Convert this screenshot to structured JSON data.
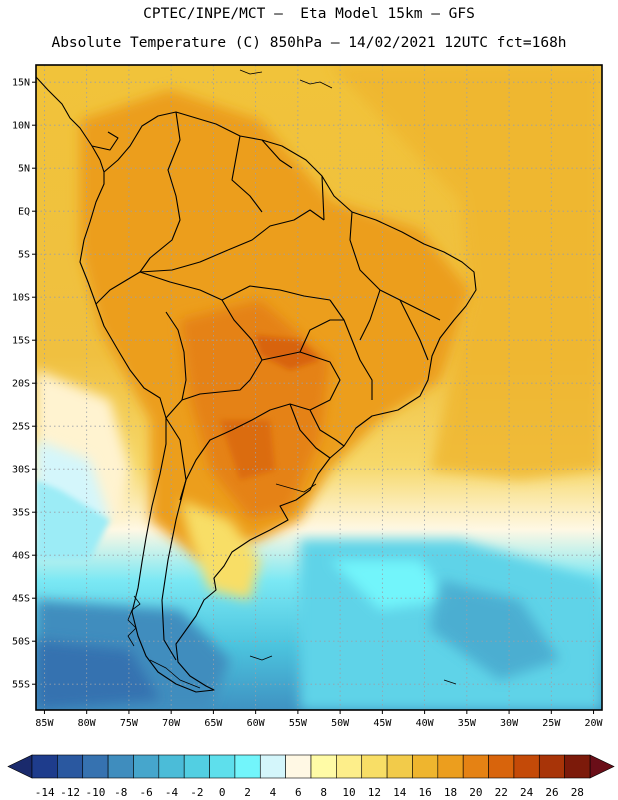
{
  "header": {
    "line1": "CPTEC/INPE/MCT –  Eta Model 15km – GFS",
    "line2": "Absolute Temperature (C) 850hPa – 14/02/2021 12UTC fct=168h"
  },
  "map": {
    "lon_range": [
      -86,
      -19
    ],
    "lat_range": [
      -58,
      17
    ],
    "lat_ticks": [
      "15N",
      "10N",
      "5N",
      "EQ",
      "5S",
      "10S",
      "15S",
      "20S",
      "25S",
      "30S",
      "35S",
      "40S",
      "45S",
      "50S",
      "55S"
    ],
    "lat_values": [
      15,
      10,
      5,
      0,
      -5,
      -10,
      -15,
      -20,
      -25,
      -30,
      -35,
      -40,
      -45,
      -50,
      -55
    ],
    "lon_ticks": [
      "85W",
      "80W",
      "75W",
      "70W",
      "65W",
      "60W",
      "55W",
      "50W",
      "45W",
      "40W",
      "35W",
      "30W",
      "25W",
      "20W"
    ],
    "lon_values": [
      -85,
      -80,
      -75,
      -70,
      -65,
      -60,
      -55,
      -50,
      -45,
      -40,
      -35,
      -30,
      -25,
      -20
    ]
  },
  "colorbar": {
    "labels": [
      "-14",
      "-12",
      "-10",
      "-8",
      "-6",
      "-4",
      "-2",
      "0",
      "2",
      "4",
      "6",
      "8",
      "10",
      "12",
      "14",
      "16",
      "18",
      "20",
      "22",
      "24",
      "26",
      "28"
    ],
    "colors": [
      "#1e3c8c",
      "#2a58a0",
      "#3672b0",
      "#3f8dbe",
      "#46a6cc",
      "#4bbcd8",
      "#52cfe2",
      "#5edfec",
      "#72f5fb",
      "#d4f6fb",
      "#fff8e4",
      "#fffba6",
      "#fdee8a",
      "#f8de66",
      "#f2cb4a",
      "#efb52e",
      "#ec9e1e",
      "#e58214",
      "#d8640c",
      "#c44a08",
      "#a83408",
      "#7c1a0a"
    ],
    "under_color": "#1a2a6c",
    "over_color": "#6a0e18"
  }
}
